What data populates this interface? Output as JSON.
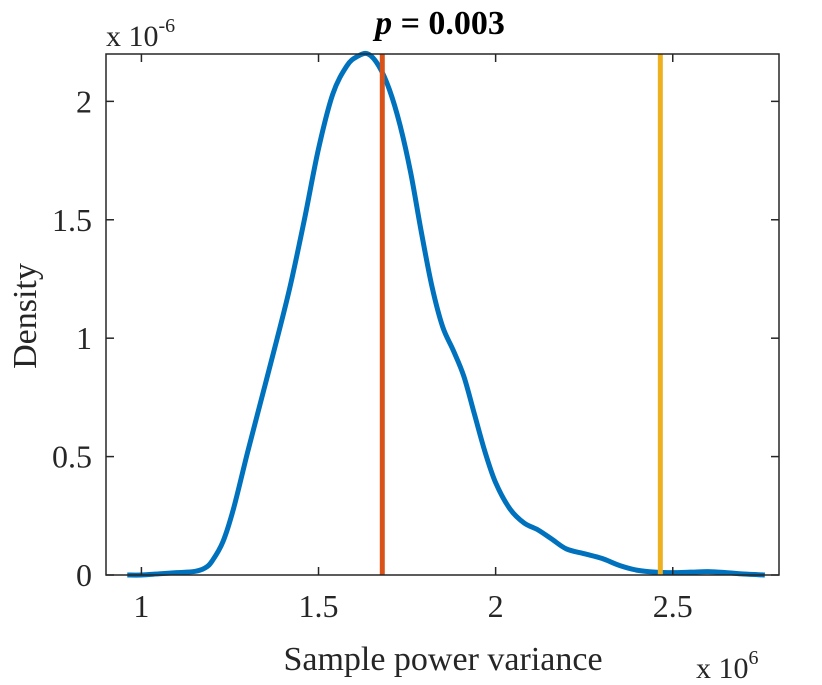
{
  "chart_data": {
    "type": "line",
    "title": {
      "italic_part": "p",
      "rest": " = 0.003"
    },
    "xlabel": "Sample power variance",
    "ylabel": "Density",
    "x_exponent": {
      "base": "x 10",
      "power": "6"
    },
    "y_exponent": {
      "base": "x 10",
      "power": "-6"
    },
    "xlim": [
      0.9,
      2.8
    ],
    "ylim": [
      0,
      2.2
    ],
    "x_ticks": [
      1,
      1.5,
      2,
      2.5
    ],
    "x_tick_labels": [
      "1",
      "1.5",
      "2",
      "2.5"
    ],
    "y_ticks": [
      0,
      0.5,
      1,
      1.5,
      2
    ],
    "y_tick_labels": [
      "0",
      "0.5",
      "1",
      "1.5",
      "2"
    ],
    "grid": false,
    "series": [
      {
        "color": "#0072BD",
        "points": [
          [
            0.96,
            0.0
          ],
          [
            1.0,
            0.0
          ],
          [
            1.05,
            0.005
          ],
          [
            1.1,
            0.01
          ],
          [
            1.15,
            0.015
          ],
          [
            1.18,
            0.03
          ],
          [
            1.2,
            0.06
          ],
          [
            1.23,
            0.14
          ],
          [
            1.26,
            0.28
          ],
          [
            1.3,
            0.52
          ],
          [
            1.34,
            0.75
          ],
          [
            1.38,
            0.98
          ],
          [
            1.42,
            1.22
          ],
          [
            1.46,
            1.5
          ],
          [
            1.5,
            1.8
          ],
          [
            1.54,
            2.03
          ],
          [
            1.58,
            2.15
          ],
          [
            1.61,
            2.19
          ],
          [
            1.64,
            2.2
          ],
          [
            1.67,
            2.15
          ],
          [
            1.7,
            2.05
          ],
          [
            1.73,
            1.9
          ],
          [
            1.76,
            1.7
          ],
          [
            1.79,
            1.45
          ],
          [
            1.82,
            1.22
          ],
          [
            1.85,
            1.05
          ],
          [
            1.88,
            0.95
          ],
          [
            1.91,
            0.84
          ],
          [
            1.94,
            0.68
          ],
          [
            1.97,
            0.52
          ],
          [
            2.0,
            0.39
          ],
          [
            2.04,
            0.28
          ],
          [
            2.08,
            0.22
          ],
          [
            2.12,
            0.19
          ],
          [
            2.16,
            0.15
          ],
          [
            2.2,
            0.11
          ],
          [
            2.25,
            0.09
          ],
          [
            2.3,
            0.07
          ],
          [
            2.35,
            0.04
          ],
          [
            2.4,
            0.02
          ],
          [
            2.45,
            0.012
          ],
          [
            2.5,
            0.01
          ],
          [
            2.55,
            0.012
          ],
          [
            2.6,
            0.014
          ],
          [
            2.65,
            0.01
          ],
          [
            2.7,
            0.004
          ],
          [
            2.76,
            0.0
          ]
        ]
      }
    ],
    "vertical_lines": [
      {
        "x": 1.68,
        "color": "#D95319"
      },
      {
        "x": 2.465,
        "color": "#EDB120"
      }
    ]
  }
}
